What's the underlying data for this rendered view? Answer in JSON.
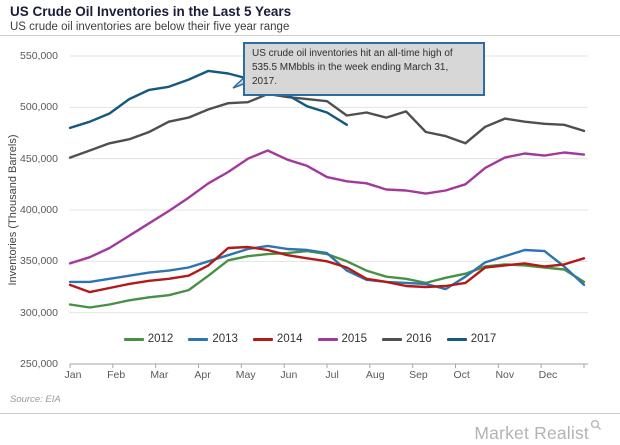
{
  "header": {
    "title": "US Crude Oil Inventories in the Last 5 Years",
    "subtitle": "US crude oil inventories are below their five year range"
  },
  "annotation": {
    "text": "US crude oil inventories hit an all-time high of 535.5 MMbbls in the week ending March 31, 2017.",
    "border_color": "#2e6da4",
    "fill_color": "#d7d7d7"
  },
  "footer": {
    "source": "Source: EIA",
    "logo": "Market Realist",
    "logo_icon": "magnifier-icon"
  },
  "chart_data": {
    "type": "line",
    "title": "US Crude Oil Inventories in the Last 5 Years",
    "xlabel": "",
    "ylabel": "Inventories (Thousand Barrels)",
    "x_axis": {
      "months": [
        "Jan",
        "Feb",
        "Mar",
        "Apr",
        "May",
        "Jun",
        "Jul",
        "Aug",
        "Sep",
        "Oct",
        "Nov",
        "Dec"
      ],
      "total_weeks": 52
    },
    "ylim": [
      250000,
      550000
    ],
    "yticks": [
      {
        "v": 550000,
        "label": "550,000"
      },
      {
        "v": 500000,
        "label": "500,000"
      },
      {
        "v": 450000,
        "label": "450,000"
      },
      {
        "v": 400000,
        "label": "400,000"
      },
      {
        "v": 350000,
        "label": "350,000"
      },
      {
        "v": 300000,
        "label": "300,000"
      },
      {
        "v": 250000,
        "label": "250,000"
      }
    ],
    "grid": true,
    "legend_position": "bottom-center",
    "peak_annotation_value": 535500,
    "series": [
      {
        "name": "2012",
        "color": "#489144",
        "week_step": 2,
        "values": [
          308000,
          305000,
          308000,
          312000,
          315000,
          317000,
          322000,
          336000,
          351000,
          355000,
          357000,
          358000,
          360000,
          357000,
          350000,
          341000,
          335000,
          333000,
          329000,
          334000,
          338000,
          345000,
          347000,
          346000,
          344000,
          342000,
          330000
        ]
      },
      {
        "name": "2013",
        "color": "#2d74b1",
        "week_step": 2,
        "values": [
          330000,
          330000,
          333000,
          336000,
          339000,
          341000,
          344000,
          350000,
          356000,
          362000,
          365000,
          362000,
          361000,
          358000,
          341000,
          332000,
          330000,
          329000,
          328000,
          323000,
          335000,
          349000,
          355000,
          361000,
          360000,
          345000,
          327000
        ]
      },
      {
        "name": "2014",
        "color": "#b31a17",
        "week_step": 2,
        "values": [
          327000,
          320000,
          324000,
          328000,
          331000,
          333000,
          336000,
          346000,
          363000,
          364000,
          361000,
          356000,
          353000,
          350000,
          344000,
          333000,
          330000,
          326000,
          325000,
          326000,
          329000,
          344000,
          346000,
          348000,
          345000,
          347000,
          353000
        ]
      },
      {
        "name": "2015",
        "color": "#a13a9b",
        "week_step": 2,
        "values": [
          348000,
          354000,
          363000,
          375000,
          387000,
          399000,
          412000,
          426000,
          437000,
          450000,
          458000,
          449000,
          443000,
          432000,
          428000,
          426000,
          420000,
          419000,
          416000,
          419000,
          425000,
          441000,
          451000,
          455000,
          453000,
          456000,
          454000
        ]
      },
      {
        "name": "2016",
        "color": "#4f4f4f",
        "week_step": 2,
        "values": [
          451000,
          458000,
          465000,
          469000,
          476000,
          486000,
          490000,
          498000,
          504000,
          505000,
          513000,
          510000,
          508000,
          506000,
          492000,
          495000,
          490000,
          496000,
          476000,
          472000,
          465000,
          481000,
          489000,
          486000,
          484000,
          483000,
          477000
        ]
      },
      {
        "name": "2017",
        "color": "#14597f",
        "week_step": 2,
        "values": [
          480000,
          486000,
          494000,
          508000,
          517000,
          520000,
          527000,
          535500,
          533000,
          528000,
          521000,
          512000,
          501000,
          495000,
          483000
        ]
      }
    ]
  }
}
